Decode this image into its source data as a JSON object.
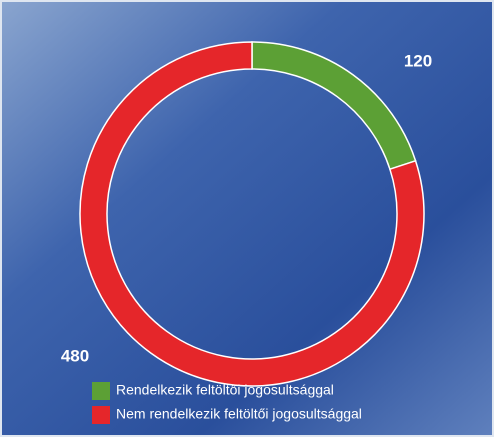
{
  "chart_data": {
    "type": "pie",
    "donut": true,
    "categories": [
      "Rendelkezik feltöltői jogosultsággal",
      "Nem rendelkezik feltöltői jogosultsággal"
    ],
    "values": [
      120,
      480
    ],
    "colors": [
      "#5ca035",
      "#e5262a"
    ],
    "legend": "bottom"
  }
}
